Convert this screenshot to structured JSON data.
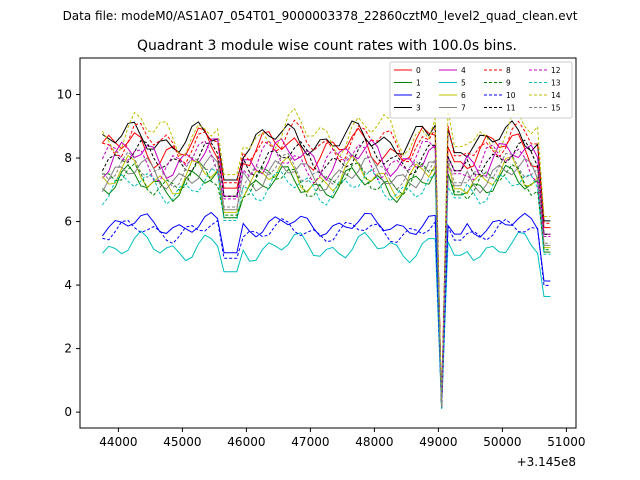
{
  "chart_data": {
    "type": "line",
    "suptitle": "Data file: modeM0/AS1A07_054T01_9000003378_22860cztM0_level2_quad_clean.evt",
    "title": "Quadrant 3 module wise count rates with 100.0s bins.",
    "xlabel": "",
    "ylabel": "",
    "x_offset_label": "+3.145e8",
    "xlim": [
      43400,
      51150
    ],
    "ylim": [
      -0.5,
      11.15
    ],
    "x_ticks": [
      44000,
      45000,
      46000,
      47000,
      48000,
      49000,
      50000,
      51000
    ],
    "y_ticks": [
      0,
      2,
      4,
      6,
      8,
      10
    ],
    "x_tick_labels": [
      "44000",
      "45000",
      "46000",
      "47000",
      "48000",
      "49000",
      "50000",
      "51000"
    ],
    "y_tick_labels": [
      "0",
      "2",
      "4",
      "6",
      "8",
      "10"
    ],
    "legend_position": "top-right",
    "legend_columns": 4,
    "x_range": {
      "start": 43750,
      "end": 50750,
      "step": 100
    },
    "anomalies": [
      {
        "x_start": 45600,
        "x_end": 45900,
        "dip_x": 45700,
        "dip_factor": 0.55,
        "recover_factor": 0.85
      },
      {
        "x_start": 48850,
        "x_end": 49400,
        "dip_x": 49050,
        "dip_factor": 0.02,
        "peak_x": 49200,
        "peak_factor": 1.18
      },
      {
        "x_start": 50600,
        "x_end": 50750,
        "drop_factor": 0.7
      }
    ],
    "series": [
      {
        "name": "0",
        "color": "#ff0000",
        "dash": "solid",
        "baseline": 8.3,
        "amplitude": 0.7,
        "phase": 0.3
      },
      {
        "name": "1",
        "color": "#008000",
        "dash": "solid",
        "baseline": 7.2,
        "amplitude": 0.6,
        "phase": 1.1
      },
      {
        "name": "2",
        "color": "#0000ff",
        "dash": "solid",
        "baseline": 5.9,
        "amplitude": 0.4,
        "phase": 2.0
      },
      {
        "name": "3",
        "color": "#000000",
        "dash": "solid",
        "baseline": 8.6,
        "amplitude": 0.6,
        "phase": 0.7
      },
      {
        "name": "4",
        "color": "#c000c0",
        "dash": "solid",
        "baseline": 8.0,
        "amplitude": 0.7,
        "phase": 1.6
      },
      {
        "name": "5",
        "color": "#00bfbf",
        "dash": "solid",
        "baseline": 5.2,
        "amplitude": 0.5,
        "phase": 2.4
      },
      {
        "name": "6",
        "color": "#bfbf00",
        "dash": "solid",
        "baseline": 7.4,
        "amplitude": 0.7,
        "phase": 0.9
      },
      {
        "name": "7",
        "color": "#808080",
        "dash": "solid",
        "baseline": 7.5,
        "amplitude": 0.6,
        "phase": 1.9
      },
      {
        "name": "8",
        "color": "#ff0000",
        "dash": "dashed",
        "baseline": 8.5,
        "amplitude": 0.7,
        "phase": 2.7
      },
      {
        "name": "9",
        "color": "#008000",
        "dash": "dashed",
        "baseline": 7.3,
        "amplitude": 0.6,
        "phase": 0.5
      },
      {
        "name": "10",
        "color": "#0000ff",
        "dash": "dashed",
        "baseline": 5.7,
        "amplitude": 0.4,
        "phase": 1.3
      },
      {
        "name": "11",
        "color": "#000000",
        "dash": "dashed",
        "baseline": 8.0,
        "amplitude": 0.6,
        "phase": 2.2
      },
      {
        "name": "12",
        "color": "#c000c0",
        "dash": "dashed",
        "baseline": 7.9,
        "amplitude": 0.7,
        "phase": 0.1
      },
      {
        "name": "13",
        "color": "#00bfbf",
        "dash": "dashed",
        "baseline": 7.1,
        "amplitude": 0.6,
        "phase": 1.7
      },
      {
        "name": "14",
        "color": "#bfbf00",
        "dash": "dashed",
        "baseline": 8.8,
        "amplitude": 0.8,
        "phase": 2.9
      },
      {
        "name": "15",
        "color": "#808080",
        "dash": "dashed",
        "baseline": 7.6,
        "amplitude": 0.6,
        "phase": 1.0
      }
    ]
  }
}
